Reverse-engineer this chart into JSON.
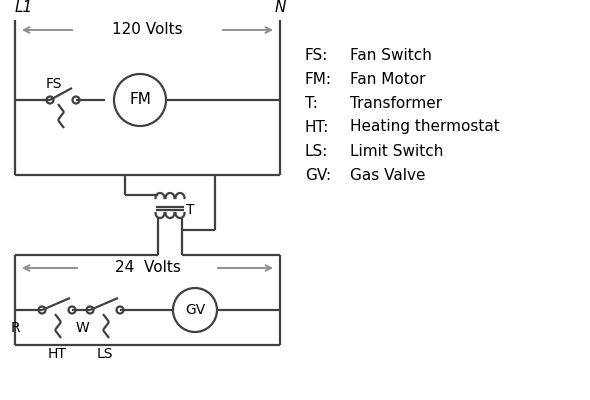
{
  "bg_color": "#ffffff",
  "line_color": "#404040",
  "arrow_color": "#909090",
  "text_color": "#000000",
  "title_L1": "L1",
  "title_N": "N",
  "volts_120": "120 Volts",
  "volts_24": "24  Volts",
  "legend": [
    [
      "FS:",
      "Fan Switch"
    ],
    [
      "FM:",
      "Fan Motor"
    ],
    [
      "T:",
      "Transformer"
    ],
    [
      "HT:",
      "Heating thermostat"
    ],
    [
      "LS:",
      "Limit Switch"
    ],
    [
      "GV:",
      "Gas Valve"
    ]
  ],
  "font_size_label": 10,
  "font_size_legend": 11,
  "font_size_volts": 11,
  "font_size_title": 11
}
